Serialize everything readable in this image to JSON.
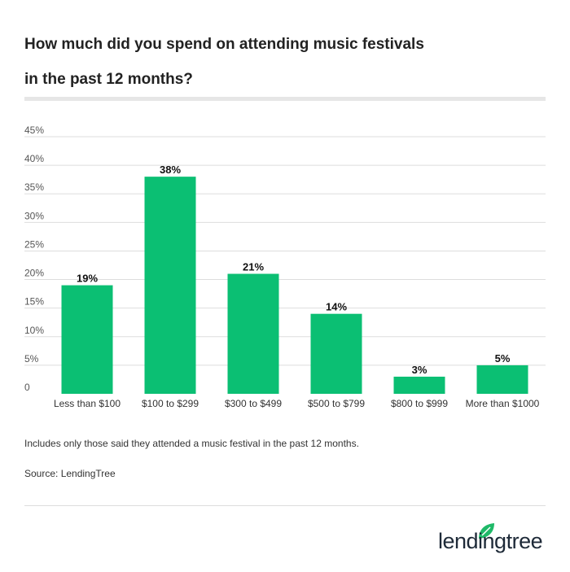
{
  "title_line1": "How much did you spend on attending music festivals",
  "title_line2": "in the past 12 months?",
  "footnote": "Includes only those said they attended a music festival in the past 12 months.",
  "source": "Source: LendingTree",
  "logo_text": "lendingtree",
  "colors": {
    "bar": "#0bbf73",
    "grid": "#dddddd",
    "logo_green": "#1fb968",
    "logo_text": "#1e2a38"
  },
  "chart_data": {
    "type": "bar",
    "title": "How much did you spend on attending music festivals in the past 12 months?",
    "categories": [
      "Less than $100",
      "$100 to $299",
      "$300 to $499",
      "$500 to $799",
      "$800 to $999",
      "More than $1000"
    ],
    "values": [
      19,
      38,
      21,
      14,
      3,
      5
    ],
    "data_labels": [
      "19%",
      "38%",
      "21%",
      "14%",
      "3%",
      "5%"
    ],
    "ylim": [
      0,
      45
    ],
    "yticks": [
      0,
      5,
      10,
      15,
      20,
      25,
      30,
      35,
      40,
      45
    ],
    "ytick_labels": [
      "0",
      "5%",
      "10%",
      "15%",
      "20%",
      "25%",
      "30%",
      "35%",
      "40%",
      "45%"
    ],
    "grid": true,
    "xlabel": "",
    "ylabel": ""
  }
}
